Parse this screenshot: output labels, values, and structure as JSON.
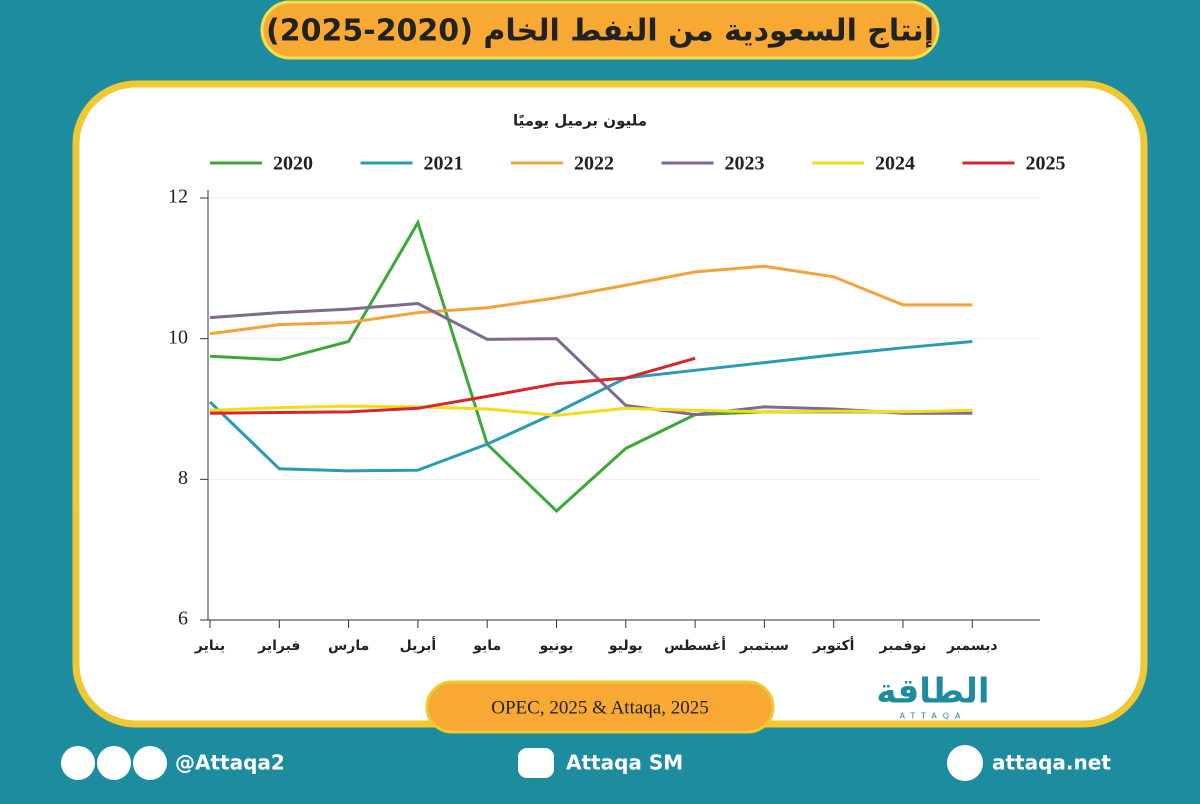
{
  "chart_data": {
    "type": "line",
    "title": "إنتاج السعودية من النفط الخام (2020-2025)",
    "ylabel": "مليون برميل يوميًا",
    "categories": [
      "يناير",
      "فبراير",
      "مارس",
      "أبريل",
      "مايو",
      "يونيو",
      "يوليو",
      "أغسطس",
      "سبتمبر",
      "أكتوبر",
      "نوفمبر",
      "ديسمبر"
    ],
    "series": [
      {
        "name": "2020",
        "color": "#3aa935",
        "values": [
          9.75,
          9.7,
          9.96,
          11.65,
          8.5,
          7.55,
          8.44,
          8.92,
          8.96,
          8.96,
          8.96,
          8.96
        ]
      },
      {
        "name": "2021",
        "color": "#2a9bb5",
        "values": [
          9.1,
          8.15,
          8.12,
          8.13,
          8.5,
          8.95,
          9.44,
          9.55,
          9.66,
          9.77,
          9.87,
          9.96
        ]
      },
      {
        "name": "2022",
        "color": "#f2a43a",
        "values": [
          10.07,
          10.2,
          10.23,
          10.37,
          10.44,
          10.58,
          10.76,
          10.95,
          11.03,
          10.88,
          10.48,
          10.48
        ]
      },
      {
        "name": "2023",
        "color": "#7d6a8e",
        "values": [
          10.3,
          10.37,
          10.42,
          10.5,
          9.99,
          10.0,
          9.05,
          8.92,
          9.03,
          9.0,
          8.94,
          8.94
        ]
      },
      {
        "name": "2024",
        "color": "#f5dc1a",
        "values": [
          8.98,
          9.02,
          9.04,
          9.03,
          9.0,
          8.91,
          9.01,
          8.98,
          8.96,
          8.97,
          8.96,
          8.98
        ]
      },
      {
        "name": "2025",
        "color": "#d7262b",
        "values": [
          8.94,
          8.95,
          8.96,
          9.01,
          9.18,
          9.36,
          9.44,
          9.72,
          null,
          null,
          null,
          null
        ]
      }
    ],
    "ylim": [
      6,
      12
    ],
    "yticks": [
      6,
      8,
      10,
      12
    ],
    "grid": true,
    "source": "OPEC, 2025 & Attaqa, 2025"
  },
  "logo": {
    "name": "الطاقة",
    "latin": "ATTAQA"
  },
  "footer": {
    "social": "@Attaqa2",
    "youtube": "Attaqa SM",
    "website": "attaqa.net"
  }
}
